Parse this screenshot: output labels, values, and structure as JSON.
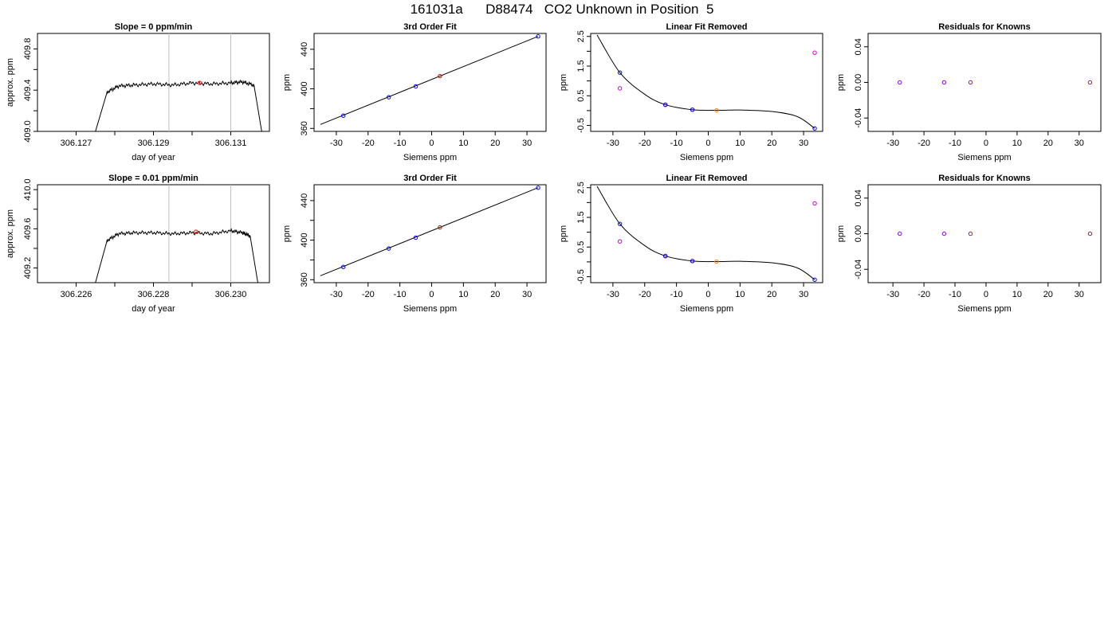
{
  "page": {
    "title": "161031a      D88474   CO2 Unknown in Position  5"
  },
  "colors": {
    "line": "#000000",
    "marker_blue": "#0000ff",
    "marker_red": "#ff0000",
    "marker_magenta": "#cc00cc",
    "marker_orange": "#ff8000",
    "marker_purple": "#7f00ff",
    "vline": "#bebebe"
  },
  "chart_data": [
    {
      "type": "line",
      "title": "Slope =  0  ppm/min",
      "xlabel": "day of year",
      "ylabel": "approx. ppm",
      "xlim": [
        306.126,
        306.132
      ],
      "ylim": [
        409.0,
        409.95
      ],
      "x_ticks": [
        306.127,
        306.128,
        306.129,
        306.13,
        306.131
      ],
      "x_tick_labels": [
        "306.127",
        "",
        "306.129",
        "",
        "306.131"
      ],
      "y_ticks": [
        409.0,
        409.2,
        409.4,
        409.6,
        409.8
      ],
      "y_tick_labels": [
        "409.0",
        "",
        "409.4",
        "",
        "409.8"
      ],
      "vlines": [
        306.1294,
        306.131
      ],
      "highlight_point": [
        306.1302,
        409.47
      ],
      "series": [
        {
          "x": [
            306.1275,
            306.1278,
            306.1281,
            306.1285,
            306.129,
            306.1295,
            306.13,
            306.1305,
            306.131,
            306.1313,
            306.1316,
            306.1318
          ],
          "values": [
            409.0,
            409.38,
            409.44,
            409.45,
            409.46,
            409.45,
            409.47,
            409.46,
            409.47,
            409.48,
            409.45,
            409.0
          ]
        }
      ]
    },
    {
      "type": "scatter",
      "title": "3rd Order Fit",
      "xlabel": "Siemens ppm",
      "ylabel": "ppm",
      "xlim": [
        -37,
        36
      ],
      "ylim": [
        357,
        456
      ],
      "x_ticks": [
        -30,
        -20,
        -10,
        0,
        10,
        20,
        30
      ],
      "y_ticks": [
        360,
        380,
        400,
        420,
        440
      ],
      "y_tick_labels": [
        "360",
        "",
        "400",
        "",
        "440"
      ],
      "fit_coefficients": [
        409.5,
        1.3
      ],
      "fit_x_range": [
        -35,
        33.5
      ],
      "knowns": {
        "x": [
          -27.8,
          -13.5,
          -5.0,
          33.5
        ],
        "values": [
          372.9,
          391.5,
          402.5,
          453.0
        ]
      },
      "unknown": {
        "x": [
          2.6
        ],
        "values": [
          412.9
        ]
      }
    },
    {
      "type": "scatter",
      "title": "Linear Fit Removed",
      "xlabel": "Siemens ppm",
      "ylabel": "ppm",
      "xlim": [
        -37,
        36
      ],
      "ylim": [
        -0.7,
        2.6
      ],
      "x_ticks": [
        -30,
        -20,
        -10,
        0,
        10,
        20,
        30
      ],
      "y_ticks": [
        -0.5,
        0.0,
        0.5,
        1.0,
        1.5,
        2.0,
        2.5
      ],
      "y_tick_labels": [
        "-0.5",
        "",
        "0.5",
        "",
        "1.5",
        "",
        "2.5"
      ],
      "curve_points": [
        [
          -35,
          2.55
        ],
        [
          -27.8,
          1.28
        ],
        [
          -20,
          0.55
        ],
        [
          -13.5,
          0.2
        ],
        [
          -5,
          0.03
        ],
        [
          2.6,
          0.01
        ],
        [
          10,
          0.02
        ],
        [
          20,
          -0.03
        ],
        [
          28,
          -0.2
        ],
        [
          33.5,
          -0.6
        ]
      ],
      "knowns_cubic": {
        "x": [
          -27.8,
          -13.5,
          -5.0,
          33.5
        ],
        "values": [
          1.28,
          0.2,
          0.03,
          -0.6
        ]
      },
      "knowns_linear": {
        "x": [
          -27.8,
          -13.5,
          -5.0,
          33.5
        ],
        "values": [
          0.75,
          0.19,
          0.03,
          1.95
        ]
      },
      "unknown": {
        "x": [
          2.6
        ],
        "values": [
          0.01
        ]
      }
    },
    {
      "type": "scatter",
      "title": "Residuals for Knowns",
      "xlabel": "Siemens ppm",
      "ylabel": "ppm",
      "xlim": [
        -38,
        37
      ],
      "ylim": [
        -0.055,
        0.055
      ],
      "x_ticks": [
        -30,
        -20,
        -10,
        0,
        10,
        20,
        30
      ],
      "y_ticks": [
        -0.04,
        0.0,
        0.04
      ],
      "y_tick_labels": [
        "-0.04",
        "0.00",
        "0.04"
      ],
      "residuals": {
        "x": [
          -27.8,
          -13.5,
          -5.0,
          33.5
        ],
        "values": [
          0,
          0,
          0,
          0
        ]
      }
    },
    {
      "type": "line",
      "title": "Slope =  0.01  ppm/min",
      "xlabel": "day of year",
      "ylabel": "approx. ppm",
      "xlim": [
        306.225,
        306.231
      ],
      "ylim": [
        409.05,
        410.05
      ],
      "x_ticks": [
        306.226,
        306.227,
        306.228,
        306.229,
        306.23
      ],
      "x_tick_labels": [
        "306.226",
        "",
        "306.228",
        "",
        "306.230"
      ],
      "y_ticks": [
        409.2,
        409.4,
        409.6,
        409.8,
        410.0
      ],
      "y_tick_labels": [
        "409.2",
        "",
        "409.6",
        "",
        "410.0"
      ],
      "vlines": [
        306.2284,
        306.23
      ],
      "highlight_point": [
        306.2291,
        409.57
      ],
      "series": [
        {
          "x": [
            306.2265,
            306.2268,
            306.2271,
            306.2275,
            306.228,
            306.2285,
            306.229,
            306.2295,
            306.23,
            306.2303,
            306.2305,
            306.2307
          ],
          "values": [
            409.05,
            409.48,
            409.55,
            409.56,
            409.56,
            409.55,
            409.56,
            409.55,
            409.58,
            409.56,
            409.53,
            409.05
          ]
        }
      ]
    },
    {
      "type": "scatter",
      "title": "3rd Order Fit",
      "xlabel": "Siemens ppm",
      "ylabel": "ppm",
      "xlim": [
        -37,
        36
      ],
      "ylim": [
        357,
        456
      ],
      "x_ticks": [
        -30,
        -20,
        -10,
        0,
        10,
        20,
        30
      ],
      "y_ticks": [
        360,
        380,
        400,
        420,
        440
      ],
      "y_tick_labels": [
        "360",
        "",
        "400",
        "",
        "440"
      ],
      "fit_coefficients": [
        409.5,
        1.3
      ],
      "fit_x_range": [
        -35,
        33.5
      ],
      "knowns": {
        "x": [
          -27.8,
          -13.5,
          -5.0,
          33.5
        ],
        "values": [
          372.9,
          391.5,
          402.5,
          453.0
        ]
      },
      "unknown": {
        "x": [
          2.6
        ],
        "values": [
          412.9
        ]
      }
    },
    {
      "type": "scatter",
      "title": "Linear Fit Removed",
      "xlabel": "Siemens ppm",
      "ylabel": "ppm",
      "xlim": [
        -37,
        36
      ],
      "ylim": [
        -0.7,
        2.6
      ],
      "x_ticks": [
        -30,
        -20,
        -10,
        0,
        10,
        20,
        30
      ],
      "y_ticks": [
        -0.5,
        0.0,
        0.5,
        1.0,
        1.5,
        2.0,
        2.5
      ],
      "y_tick_labels": [
        "-0.5",
        "",
        "0.5",
        "",
        "1.5",
        "",
        "2.5"
      ],
      "curve_points": [
        [
          -35,
          2.55
        ],
        [
          -27.8,
          1.28
        ],
        [
          -20,
          0.55
        ],
        [
          -13.5,
          0.2
        ],
        [
          -5,
          0.03
        ],
        [
          2.6,
          0.01
        ],
        [
          10,
          0.02
        ],
        [
          20,
          -0.03
        ],
        [
          28,
          -0.2
        ],
        [
          33.5,
          -0.6
        ]
      ],
      "knowns_cubic": {
        "x": [
          -27.8,
          -13.5,
          -5.0,
          33.5
        ],
        "values": [
          1.28,
          0.2,
          0.03,
          -0.6
        ]
      },
      "knowns_linear": {
        "x": [
          -27.8,
          -13.5,
          -5.0,
          33.5
        ],
        "values": [
          0.69,
          0.19,
          0.03,
          1.97
        ]
      },
      "unknown": {
        "x": [
          2.6
        ],
        "values": [
          0.01
        ]
      }
    },
    {
      "type": "scatter",
      "title": "Residuals for Knowns",
      "xlabel": "Siemens ppm",
      "ylabel": "ppm",
      "xlim": [
        -38,
        37
      ],
      "ylim": [
        -0.055,
        0.055
      ],
      "x_ticks": [
        -30,
        -20,
        -10,
        0,
        10,
        20,
        30
      ],
      "y_ticks": [
        -0.04,
        0.0,
        0.04
      ],
      "y_tick_labels": [
        "-0.04",
        "0.00",
        "0.04"
      ],
      "residuals": {
        "x": [
          -27.8,
          -13.5,
          -5.0,
          33.5
        ],
        "values": [
          0,
          0,
          0,
          0
        ]
      }
    }
  ]
}
